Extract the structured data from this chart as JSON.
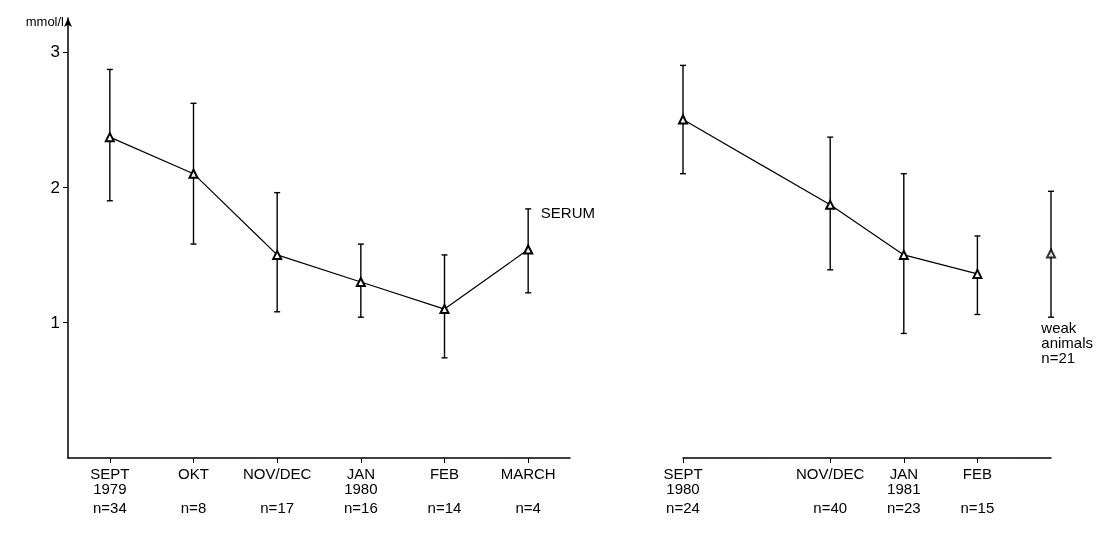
{
  "chart_data": [
    {
      "type": "line",
      "ylabel": "mmol/l",
      "categories": [
        "SEPT\n1979\nn=34",
        "OKT\nn=8",
        "NOV/DEC\nn=17",
        "JAN\n1980\nn=16",
        "FEB\nn=14",
        "MARCH\nn=4"
      ],
      "series": [
        {
          "color": "#000000",
          "values": [
            2.37,
            2.1,
            1.5,
            1.3,
            1.1,
            1.54
          ],
          "errors": [
            [
              1.9,
              2.87
            ],
            [
              1.58,
              2.62
            ],
            [
              1.08,
              1.96
            ],
            [
              1.04,
              1.58
            ],
            [
              0.74,
              1.5
            ],
            [
              1.22,
              1.84
            ]
          ]
        }
      ],
      "ylim": [
        0,
        3.25
      ],
      "yticks": [
        1,
        2,
        3
      ],
      "marker": "triangle",
      "line_style": "solid",
      "annotations": [
        "SERUM"
      ]
    },
    {
      "type": "line",
      "categories": [
        "SEPT\n1980\nn=24",
        null,
        "NOV/DEC\nn=40",
        "JAN\n1981\nn=23",
        "FEB\nn=15",
        null
      ],
      "series": [
        {
          "color": "#000000",
          "values": [
            2.5,
            null,
            1.87,
            1.5,
            1.36,
            null
          ],
          "errors": [
            [
              2.1,
              2.9
            ],
            null,
            [
              1.39,
              2.37
            ],
            [
              0.92,
              2.1
            ],
            [
              1.06,
              1.64
            ],
            null
          ]
        },
        {
          "type": "scatter",
          "color": "#000000",
          "values": [
            null,
            null,
            null,
            null,
            null,
            1.51
          ],
          "errors": [
            null,
            null,
            null,
            null,
            null,
            [
              1.04,
              1.97
            ]
          ]
        }
      ],
      "ylim": [
        0,
        3
      ],
      "yticks": [
        1,
        2,
        3
      ],
      "tick_labels": "x",
      "marker": "triangle",
      "line_style": "solid",
      "annotations": [
        "weak\nanimals\nn=21"
      ]
    }
  ]
}
